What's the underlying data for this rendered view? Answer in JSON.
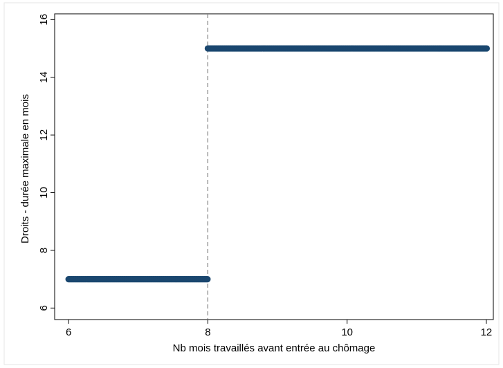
{
  "chart_data": {
    "type": "scatter",
    "title": "",
    "xlabel": "Nb mois travaillés avant entrée au chômage",
    "ylabel": "Droits - durée maximale en mois",
    "xlim": [
      5.8,
      12.1
    ],
    "ylim": [
      5.6,
      16.2
    ],
    "x_ticks": [
      "6",
      "8",
      "10",
      "12"
    ],
    "y_ticks": [
      "6",
      "8",
      "10",
      "12",
      "14",
      "16"
    ],
    "grid": false,
    "legend": "none",
    "threshold_line": {
      "x": 8,
      "style": "dashed",
      "color": "#7f7f7f"
    },
    "marker_color": "#1a476f",
    "series": [
      {
        "x_start": 6,
        "x_end": 8,
        "y": 7
      },
      {
        "x_start": 8,
        "x_end": 12,
        "y": 15
      }
    ]
  }
}
